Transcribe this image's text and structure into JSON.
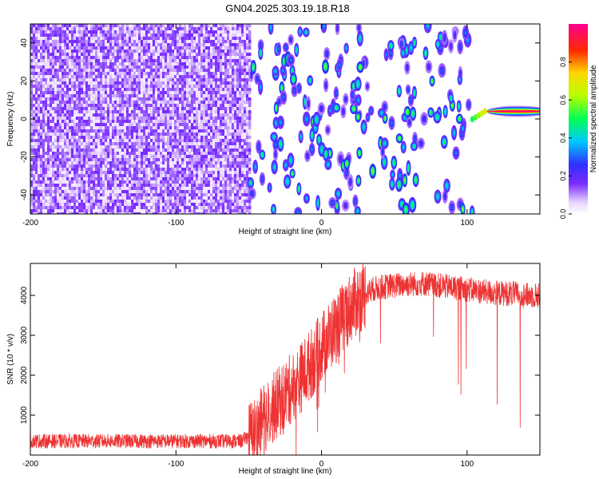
{
  "title": "GN04.2025.303.19.18.R18",
  "chart_data": [
    {
      "type": "heatmap",
      "xlabel": "Height of straight line (km)",
      "ylabel": "Frequency (Hz)",
      "xlim": [
        -200,
        150
      ],
      "ylim": [
        -50,
        50
      ],
      "xticks": [
        -200,
        -100,
        0,
        100
      ],
      "yticks": [
        -40,
        -20,
        0,
        20,
        40
      ],
      "colorbar": {
        "label": "Normalized spectral amplitude",
        "range": [
          0,
          1
        ],
        "ticks": [
          "0.0",
          "0.2",
          "0.4",
          "0.6",
          "0.8"
        ]
      },
      "regions": [
        {
          "description": "dense_noise",
          "x_range": [
            -200,
            -50
          ],
          "amplitude_range": [
            0.0,
            0.15
          ]
        },
        {
          "description": "scattered_echoes",
          "x_range": [
            -50,
            105
          ],
          "amplitude_range": [
            0.0,
            0.6
          ]
        },
        {
          "description": "strong_line",
          "x_range": [
            108,
            150
          ],
          "frequency": 4,
          "peak_amplitude": 1.0
        }
      ]
    },
    {
      "type": "line",
      "xlabel": "Height of straight line (km)",
      "ylabel": "SNR (10 * v/v)",
      "xlim": [
        -200,
        150
      ],
      "ylim": [
        0,
        4800
      ],
      "xticks": [
        -200,
        -100,
        0,
        100
      ],
      "yticks": [
        1000,
        2000,
        3000,
        4000
      ],
      "series": [
        {
          "color": "#ee3333",
          "x": [
            -200,
            -175,
            -150,
            -125,
            -100,
            -75,
            -55,
            -45,
            -40,
            -35,
            -30,
            -25,
            -20,
            -15,
            -10,
            -5,
            0,
            5,
            10,
            15,
            20,
            25,
            30,
            35,
            40,
            50,
            60,
            70,
            80,
            90,
            100,
            110,
            120,
            130,
            140,
            150
          ],
          "y": [
            350,
            350,
            350,
            350,
            350,
            350,
            350,
            600,
            900,
            1100,
            1300,
            1500,
            1700,
            1900,
            2150,
            2400,
            2700,
            2950,
            3200,
            3450,
            3700,
            3900,
            4050,
            4150,
            4200,
            4250,
            4280,
            4300,
            4250,
            4200,
            4150,
            4100,
            4050,
            4050,
            4000,
            4000
          ]
        }
      ]
    }
  ]
}
